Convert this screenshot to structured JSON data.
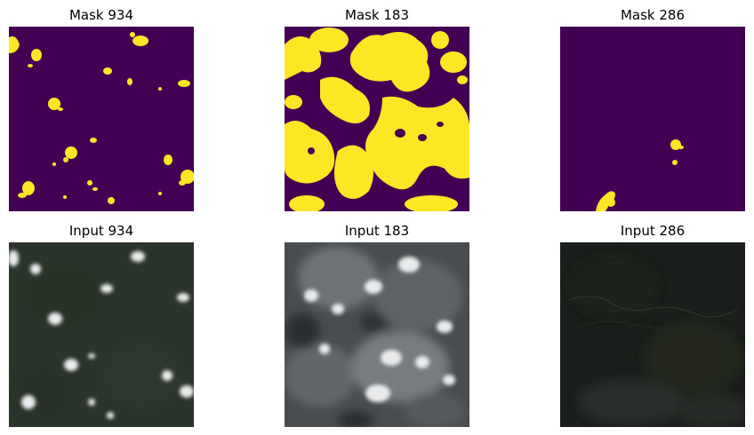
{
  "figure": {
    "panels": [
      {
        "title": "Mask 934",
        "kind": "mask",
        "mask_color": "#440154",
        "blob_color": "#fde725"
      },
      {
        "title": "Mask 183",
        "kind": "mask",
        "mask_color": "#440154",
        "blob_color": "#fde725"
      },
      {
        "title": "Mask 286",
        "kind": "mask",
        "mask_color": "#440154",
        "blob_color": "#fde725"
      },
      {
        "title": "Input 934",
        "kind": "input"
      },
      {
        "title": "Input 183",
        "kind": "input"
      },
      {
        "title": "Input 286",
        "kind": "input"
      }
    ]
  }
}
